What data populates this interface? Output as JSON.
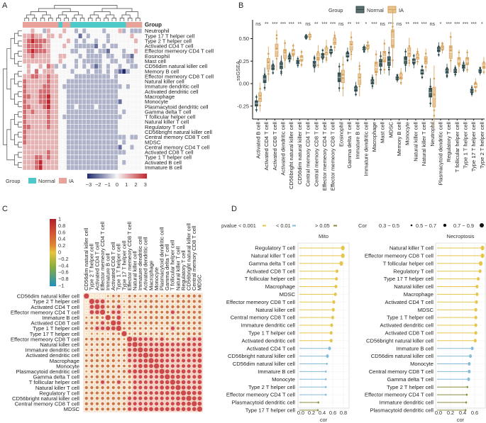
{
  "panels": {
    "a": "A",
    "b": "B",
    "c": "C",
    "d": "D"
  },
  "chart_data": [
    {
      "type": "heatmap",
      "panel": "A",
      "group_title": "Group",
      "legend": {
        "title": "Group",
        "groups": [
          {
            "name": "Normal",
            "color": "#4ec9c9"
          },
          {
            "name": "IA",
            "color": "#e8a29a"
          }
        ]
      },
      "color_scale": {
        "min": -3,
        "max": 3,
        "ticks": [
          "-3",
          "-2",
          "-1",
          "0",
          "1",
          "2",
          "3"
        ],
        "colors": [
          "#1f2a6e",
          "#f7f7f7",
          "#c1272d"
        ]
      },
      "column_groups": "IIIIIIIIINIINNNNNNNNNNNNNNIIII",
      "value_encoding": "digit d => value d-3",
      "rows": [
        {
          "name": "Neutrophil",
          "v": "334332433343323233332333423222"
        },
        {
          "name": "Type 17 T helper cell",
          "v": "445443443433331323333233333433"
        },
        {
          "name": "Type 2 T helper cell",
          "v": "456555433334323233233233333343"
        },
        {
          "name": "Activated CD4 T cell",
          "v": "455554433343322222132322333333"
        },
        {
          "name": "Effector memeory CD4 T cell",
          "v": "456555433333223322322133323343"
        },
        {
          "name": "Eosinophil",
          "v": "445444433443332322223223322133"
        },
        {
          "name": "Mast cell",
          "v": "444444433433323222223322332233"
        },
        {
          "name": "CD56dim natural killer cell",
          "v": "343343542323323232123233233223"
        },
        {
          "name": "Memory B cell",
          "v": "343534443333233323223232102333"
        },
        {
          "name": "Effector memeory CD8 T cell",
          "v": "445544544333322222222232333333"
        },
        {
          "name": "Natural killer cell",
          "v": "544444544332222222222222333333"
        },
        {
          "name": "Immature dendritic cell",
          "v": "544445544322222222222222232333"
        },
        {
          "name": "Activated dendritic cell",
          "v": "544455544332222222222222333333"
        },
        {
          "name": "Macrophage",
          "v": "554455644332222222222222333333"
        },
        {
          "name": "Monocyte",
          "v": "544455644332222222222222133333"
        },
        {
          "name": "Plasmacytoid dendritic cell",
          "v": "554445644332232222322222333333"
        },
        {
          "name": "Gamma delta T cell",
          "v": "545444544332222222222222323333"
        },
        {
          "name": "T follicular helper cell",
          "v": "544444544322222222222222233333"
        },
        {
          "name": "Natural killer T cell",
          "v": "544444544332222222222222333333"
        },
        {
          "name": "Regulatory T cell",
          "v": "554444544332222222222222333333"
        },
        {
          "name": "CD56bright natural killer cell",
          "v": "544444444332222222222222333333"
        },
        {
          "name": "Central memory CD8 T cell",
          "v": "544444444332222222222222223223"
        },
        {
          "name": "MDSC",
          "v": "544444444332222222222222323333"
        },
        {
          "name": "Central memory CD4 T cell",
          "v": "444444444332222222222222133233"
        },
        {
          "name": "Activated CD8 T cell",
          "v": "444444544332222222222222223333"
        },
        {
          "name": "Type 1 T helper cell",
          "v": "444554544332222222222222333333"
        },
        {
          "name": "Activated B cell",
          "v": "444564444332222222222222323333"
        },
        {
          "name": "Immature  B cell",
          "v": "444564444332222222222222333333"
        }
      ]
    },
    {
      "type": "box",
      "panel": "B",
      "ylabel": "ssGSEA",
      "ylim": [
        -0.35,
        0.68
      ],
      "yticks": [
        "-0.25",
        "0.00",
        "0.25",
        "0.50"
      ],
      "ytick_values": [
        -0.25,
        0,
        0.25,
        0.5
      ],
      "legend": {
        "title": "Group",
        "items": [
          {
            "name": "Normal",
            "color": "#2e4a4a"
          },
          {
            "name": "IA",
            "color": "#d6a05a"
          }
        ]
      },
      "categories": [
        "Activated B cell",
        "Activated CD4 T cell",
        "Activated CD8 T cell",
        "Activated dendritic cell",
        "CD56bright natural killer cell",
        "CD56dim natural killer cell",
        "Central memory CD4 T cell",
        "Central memory CD8 T cell",
        "Effector memeory CD4 T cell",
        "Effector memeory CD8 T cell",
        "Eosinophil",
        "Gamma delta T cell",
        "Immature  B cell",
        "Immature dendritic cell",
        "Macrophage",
        "Mast cell",
        "MDSC",
        "Memory B cell",
        "Monocyte",
        "Natural killer cell",
        "Natural killer T cell",
        "Neutrophil",
        "Plasmacytoid dendritic cell",
        "Regulatory T cell",
        "T follicular helper cell",
        "Type 1 T helper cell",
        "Type 17 T helper cell",
        "Type 2 T helper cell"
      ],
      "significance": [
        "ns",
        "**",
        "***",
        "***",
        "***",
        "**",
        "ns",
        "**",
        "***",
        "***",
        "ns",
        "**",
        "**",
        "*",
        "***",
        "ns",
        "***",
        "ns",
        "**",
        "***",
        "***",
        "ns",
        "*",
        "***",
        "***",
        "***",
        "***",
        "*"
      ],
      "series": [
        {
          "name": "Normal",
          "median": [
            -0.22,
            0.05,
            0.18,
            0.2,
            0.29,
            0.24,
            0.52,
            0.22,
            0.31,
            0.36,
            0.07,
            0.32,
            -0.06,
            0.39,
            0.02,
            0.23,
            0.25,
            0.06,
            0.26,
            0.25,
            0.13,
            -0.1,
            0.38,
            0.14,
            0.14,
            0.19,
            -0.08,
            0.14
          ],
          "iqr": [
            0.06,
            0.08,
            0.05,
            0.07,
            0.04,
            0.04,
            0.02,
            0.06,
            0.05,
            0.04,
            0.1,
            0.05,
            0.05,
            0.03,
            0.05,
            0.08,
            0.1,
            0.03,
            0.08,
            0.05,
            0.05,
            0.1,
            0.05,
            0.05,
            0.04,
            0.04,
            0.04,
            0.03
          ]
        },
        {
          "name": "IA",
          "median": [
            -0.15,
            0.22,
            0.37,
            0.33,
            0.35,
            0.28,
            0.53,
            0.3,
            0.36,
            0.47,
            0.08,
            0.42,
            0.05,
            0.41,
            0.18,
            0.3,
            0.5,
            0.08,
            0.35,
            0.3,
            0.26,
            -0.15,
            0.4,
            0.35,
            0.25,
            0.25,
            -0.02,
            0.2
          ],
          "iqr": [
            0.1,
            0.12,
            0.14,
            0.1,
            0.06,
            0.06,
            0.03,
            0.08,
            0.08,
            0.07,
            0.14,
            0.1,
            0.12,
            0.04,
            0.12,
            0.12,
            0.2,
            0.06,
            0.1,
            0.06,
            0.08,
            0.22,
            0.04,
            0.14,
            0.08,
            0.08,
            0.05,
            0.06
          ]
        }
      ]
    },
    {
      "type": "correlation-dot-matrix",
      "panel": "C",
      "colorbar_ticks": [
        "1",
        "0.8",
        "0.6",
        "0.4",
        "0.2",
        "0",
        "−0.2",
        "−0.4",
        "−0.6",
        "−0.8",
        "−1"
      ],
      "value_encoding": "lower triangle, digit d => r = d/10 (9 = diagonal 1)",
      "labels": [
        "CD56dim natural killer cell",
        "Type 2 T helper cell",
        "Activated CD4 T cell",
        "Effector memeory CD4 T cell",
        "Immature  B cell",
        "Activated CD8 T cell",
        "Type 1 T helper cell",
        "Type 17 T helper cell",
        "Effector memeory CD8 T cell",
        "Natural killer cell",
        "Immature dendritic cell",
        "Activated dendritic cell",
        "Macrophage",
        "Monocyte",
        "Plasmacytoid dendritic cell",
        "Gamma delta T cell",
        "T follicular helper cell",
        "Natural killer T cell",
        "Regulatory T cell",
        "CD56bright natural killer cell",
        "Central memory CD8 T cell",
        "MDSC"
      ],
      "lower": [
        "9",
        "19",
        "189",
        "1889",
        "45659",
        "566769",
        "5677889",
        "24443559",
        "566656649",
        "5556565589",
        "45555556789",
        "566566557789",
        "5666665577889",
        "56666655678889",
        "456565567888889",
        "5566665567777789",
        "55676675677777889",
        "666666666777778889",
        "5666666667777788889",
        "66666666777777777889",
        "666666667777777778889",
        "6666666677888888888889"
      ]
    },
    {
      "type": "lollipop",
      "panel": "D",
      "pvalue_legend": {
        "title": "pvalue",
        "items": [
          {
            "label": "< 0.001",
            "color": "#e6c54a"
          },
          {
            "label": "< 0.01",
            "color": "#86bcd8"
          },
          {
            "label": "> 0.05",
            "color": "#8c8a3c"
          }
        ]
      },
      "cor_legend": {
        "title": "Cor",
        "items": [
          "0.3 − 0.5",
          "0.5 − 0.7",
          "0.7 − 0.9"
        ]
      },
      "xlabel": "cor",
      "charts": [
        {
          "title": "Mito",
          "xticks": [
            "0.0",
            "0.2",
            "0.4",
            "0.6",
            "0.8"
          ],
          "xmax": 0.8,
          "rows": [
            {
              "name": "Regulatory T cell",
              "cor": 0.79,
              "p": 0
            },
            {
              "name": "Natural killer T cell",
              "cor": 0.79,
              "p": 0
            },
            {
              "name": "Gamma delta T cell",
              "cor": 0.76,
              "p": 0
            },
            {
              "name": "Activated CD8 T cell",
              "cor": 0.68,
              "p": 0
            },
            {
              "name": "T follicular helper cell",
              "cor": 0.67,
              "p": 0
            },
            {
              "name": "Macrophage",
              "cor": 0.66,
              "p": 0
            },
            {
              "name": "MDSC",
              "cor": 0.65,
              "p": 0
            },
            {
              "name": "Effector memeory CD8 T cell",
              "cor": 0.62,
              "p": 0
            },
            {
              "name": "Natural killer cell",
              "cor": 0.61,
              "p": 0
            },
            {
              "name": "Central memory CD8 T cell",
              "cor": 0.6,
              "p": 0
            },
            {
              "name": "Immature dendritic cell",
              "cor": 0.58,
              "p": 0
            },
            {
              "name": "Type 1 T helper cell",
              "cor": 0.57,
              "p": 0
            },
            {
              "name": "Activated dendritic cell",
              "cor": 0.57,
              "p": 0
            },
            {
              "name": "Activated CD4 T cell",
              "cor": 0.54,
              "p": 1
            },
            {
              "name": "CD56bright natural killer cell",
              "cor": 0.5,
              "p": 1
            },
            {
              "name": "CD56dim natural killer cell",
              "cor": 0.49,
              "p": 1
            },
            {
              "name": "Immature  B cell",
              "cor": 0.47,
              "p": 1
            },
            {
              "name": "Monocyte",
              "cor": 0.47,
              "p": 1
            },
            {
              "name": "Type 2 T helper cell",
              "cor": 0.47,
              "p": 1
            },
            {
              "name": "Effector memeory CD4 T cell",
              "cor": 0.47,
              "p": 1
            },
            {
              "name": "Plasmacytoid dendritic cell",
              "cor": 0.33,
              "p": 2
            },
            {
              "name": "Type 17 T helper cell",
              "cor": 0.32,
              "p": 2
            }
          ]
        },
        {
          "title": "Necroptosis",
          "xticks": [
            "0.0",
            "0.2",
            "0.4",
            "0.6"
          ],
          "xmax": 0.6,
          "rows": [
            {
              "name": "Natural killer T cell",
              "cor": 0.73,
              "p": 0
            },
            {
              "name": "Effector memeory CD8 T cell",
              "cor": 0.73,
              "p": 0
            },
            {
              "name": "T follicular helper cell",
              "cor": 0.7,
              "p": 0
            },
            {
              "name": "Regulatory T cell",
              "cor": 0.69,
              "p": 0
            },
            {
              "name": "Type 17 T helper cell",
              "cor": 0.66,
              "p": 0
            },
            {
              "name": "Natural killer cell",
              "cor": 0.64,
              "p": 0
            },
            {
              "name": "Macrophage",
              "cor": 0.64,
              "p": 0
            },
            {
              "name": "Activated CD4 T cell",
              "cor": 0.63,
              "p": 0
            },
            {
              "name": "MDSC",
              "cor": 0.62,
              "p": 0
            },
            {
              "name": "Type 1 T helper cell",
              "cor": 0.62,
              "p": 0
            },
            {
              "name": "Activated dendritic cell",
              "cor": 0.62,
              "p": 0
            },
            {
              "name": "Activated CD8 T cell",
              "cor": 0.62,
              "p": 0
            },
            {
              "name": "CD56bright natural killer cell",
              "cor": 0.61,
              "p": 0
            },
            {
              "name": "Immature  B cell",
              "cor": 0.56,
              "p": 1
            },
            {
              "name": "CD56dim natural killer cell",
              "cor": 0.53,
              "p": 1
            },
            {
              "name": "Monocyte",
              "cor": 0.51,
              "p": 1
            },
            {
              "name": "Central memory CD8 T cell",
              "cor": 0.51,
              "p": 1
            },
            {
              "name": "Gamma delta T cell",
              "cor": 0.5,
              "p": 1
            },
            {
              "name": "Type 2 T helper cell",
              "cor": 0.48,
              "p": 2
            },
            {
              "name": "Effector memeory CD4 T cell",
              "cor": 0.47,
              "p": 2
            },
            {
              "name": "Immature dendritic cell",
              "cor": 0.46,
              "p": 2
            },
            {
              "name": "Plasmacytoid dendritic cell",
              "cor": 0.45,
              "p": 2
            }
          ]
        }
      ]
    }
  ]
}
